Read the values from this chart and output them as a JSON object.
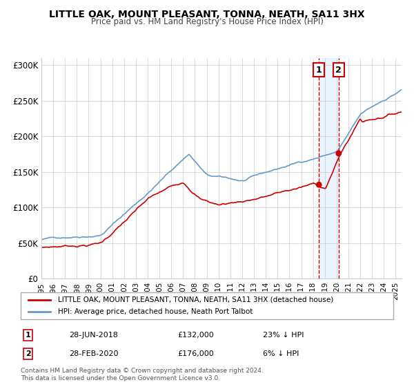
{
  "title": "LITTLE OAK, MOUNT PLEASANT, TONNA, NEATH, SA11 3HX",
  "subtitle": "Price paid vs. HM Land Registry's House Price Index (HPI)",
  "legend_label1": "LITTLE OAK, MOUNT PLEASANT, TONNA, NEATH, SA11 3HX (detached house)",
  "legend_label2": "HPI: Average price, detached house, Neath Port Talbot",
  "line1_color": "#cc0000",
  "line2_color": "#6699cc",
  "marker1_color": "#cc0000",
  "marker2_color": "#cc0000",
  "vline_color": "#cc0000",
  "shade_color": "#ddeeff",
  "point1_date": 2018.5,
  "point1_value": 132000,
  "point2_date": 2020.17,
  "point2_value": 176000,
  "annotation1": "1",
  "annotation2": "2",
  "ann1_label": "28-JUN-2018",
  "ann1_price": "£132,000",
  "ann1_pct": "23% ↓ HPI",
  "ann2_label": "28-FEB-2020",
  "ann2_price": "£176,000",
  "ann2_pct": "6% ↓ HPI",
  "footer": "Contains HM Land Registry data © Crown copyright and database right 2024.\nThis data is licensed under the Open Government Licence v3.0.",
  "ylim": [
    0,
    310000
  ],
  "xlim_start": 1995.0,
  "xlim_end": 2025.5,
  "yticks": [
    0,
    50000,
    100000,
    150000,
    200000,
    250000,
    300000
  ],
  "ytick_labels": [
    "£0",
    "£50K",
    "£100K",
    "£150K",
    "£200K",
    "£250K",
    "£300K"
  ]
}
